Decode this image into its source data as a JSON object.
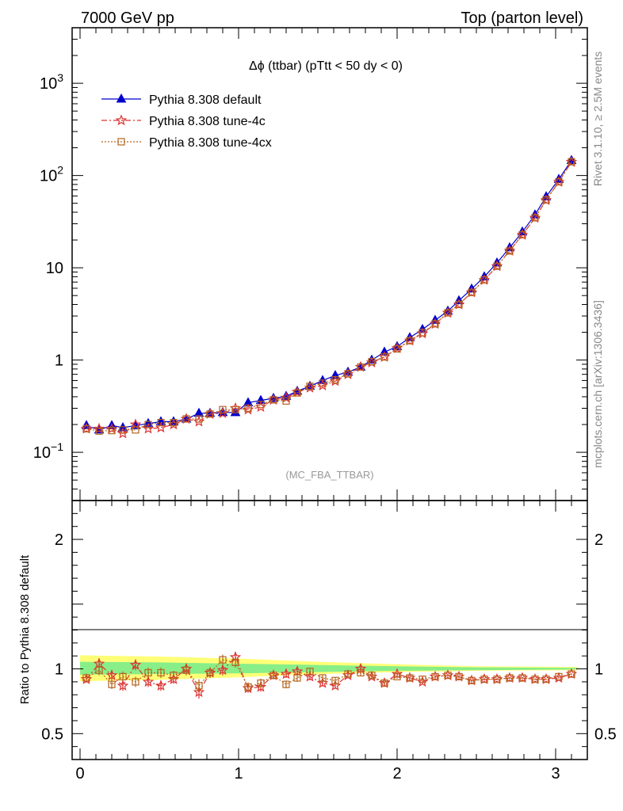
{
  "header": {
    "left": "7000 GeV pp",
    "right": "Top (parton level)"
  },
  "side_labels": {
    "rivet": "Rivet 3.1.10, ≥ 2.5M events",
    "mcplots": "mcplots.cern.ch [arXiv:1306.3436]"
  },
  "chart_data": [
    {
      "type": "line",
      "title": "Δϕ (ttbar) (pTtt < 50 dy < 0)",
      "annotation": "(MC_FBA_TTBAR)",
      "xlabel": "",
      "ylabel": "",
      "xlim": [
        -0.05,
        3.2
      ],
      "ylim": [
        0.03,
        4000
      ],
      "yscale": "log",
      "legend_position": "top-left",
      "y_ticks": [
        {
          "value": 0.1,
          "base": "10",
          "exp": "−1"
        },
        {
          "value": 1,
          "label": "1"
        },
        {
          "value": 10,
          "label": "10"
        },
        {
          "value": 100,
          "base": "10",
          "exp": "2"
        },
        {
          "value": 1000,
          "base": "10",
          "exp": "3"
        }
      ],
      "x": [
        0.04,
        0.12,
        0.2,
        0.27,
        0.35,
        0.43,
        0.51,
        0.59,
        0.67,
        0.75,
        0.82,
        0.9,
        0.98,
        1.06,
        1.14,
        1.22,
        1.3,
        1.37,
        1.45,
        1.53,
        1.61,
        1.69,
        1.77,
        1.84,
        1.92,
        2.0,
        2.08,
        2.16,
        2.24,
        2.32,
        2.39,
        2.47,
        2.55,
        2.63,
        2.71,
        2.79,
        2.87,
        2.94,
        3.02,
        3.1
      ],
      "series": [
        {
          "name": "Pythia 8.308 default",
          "color": "#0000cc",
          "marker": "triangle",
          "dash": "solid",
          "values": [
            0.195,
            0.175,
            0.195,
            0.185,
            0.195,
            0.205,
            0.215,
            0.215,
            0.23,
            0.265,
            0.265,
            0.27,
            0.27,
            0.345,
            0.365,
            0.385,
            0.405,
            0.46,
            0.52,
            0.6,
            0.68,
            0.74,
            0.84,
            1.0,
            1.22,
            1.4,
            1.75,
            2.15,
            2.7,
            3.4,
            4.4,
            5.9,
            8.0,
            11.3,
            16.5,
            24.5,
            37.5,
            59.0,
            91.0,
            146
          ]
        },
        {
          "name": "Pythia 8.308 tune-4c",
          "color": "#dd3333",
          "marker": "star",
          "dash": "dashdot",
          "values": [
            0.18,
            0.18,
            0.18,
            0.16,
            0.2,
            0.18,
            0.185,
            0.2,
            0.23,
            0.215,
            0.26,
            0.265,
            0.3,
            0.29,
            0.31,
            0.37,
            0.39,
            0.45,
            0.5,
            0.53,
            0.59,
            0.7,
            0.84,
            0.94,
            1.08,
            1.34,
            1.62,
            1.94,
            2.46,
            3.24,
            4.0,
            5.4,
            7.35,
            10.4,
            15.3,
            22.7,
            34.7,
            54.0,
            85.0,
            140
          ]
        },
        {
          "name": "Pythia 8.308 tune-4cx",
          "color": "#b5651d",
          "marker": "square",
          "dash": "dotted",
          "values": [
            0.18,
            0.17,
            0.172,
            0.175,
            0.175,
            0.2,
            0.21,
            0.21,
            0.23,
            0.23,
            0.26,
            0.29,
            0.29,
            0.3,
            0.33,
            0.37,
            0.36,
            0.44,
            0.52,
            0.56,
            0.61,
            0.71,
            0.84,
            0.96,
            1.08,
            1.32,
            1.62,
            1.98,
            2.47,
            3.25,
            4.0,
            5.4,
            7.4,
            10.4,
            15.2,
            22.8,
            34.9,
            54.5,
            85.5,
            141
          ]
        }
      ]
    },
    {
      "type": "line",
      "title": "",
      "xlabel": "",
      "ylabel": "Ratio to Pythia 8.308 default",
      "xlim": [
        -0.05,
        3.2
      ],
      "ylim": [
        0.3,
        2.3
      ],
      "yscale": "linear",
      "x_ticks": [
        {
          "value": 0,
          "label": "0"
        },
        {
          "value": 1,
          "label": "1"
        },
        {
          "value": 2,
          "label": "2"
        },
        {
          "value": 3,
          "label": "3"
        }
      ],
      "y_ticks": [
        {
          "value": 0.5,
          "label": "0.5"
        },
        {
          "value": 1,
          "label": "1"
        },
        {
          "value": 2,
          "label": "2"
        }
      ],
      "bands": {
        "yellow": {
          "color": "#ffff77",
          "x": [
            0.0,
            0.5,
            1.0,
            1.5,
            2.0,
            2.5,
            3.14
          ],
          "lo": [
            0.905,
            0.915,
            0.935,
            0.96,
            0.975,
            0.985,
            0.99
          ],
          "hi": [
            1.105,
            1.095,
            1.08,
            1.055,
            1.035,
            1.02,
            1.015
          ]
        },
        "green": {
          "color": "#88ee88",
          "x": [
            0.0,
            0.5,
            1.0,
            1.5,
            2.0,
            2.5,
            3.14
          ],
          "lo": [
            0.955,
            0.96,
            0.965,
            0.975,
            0.985,
            0.99,
            0.995
          ],
          "hi": [
            1.055,
            1.05,
            1.04,
            1.03,
            1.02,
            1.012,
            1.008
          ]
        }
      },
      "series": [
        {
          "name": "Pythia 8.308 tune-4c",
          "color": "#dd3333",
          "marker": "star",
          "dash": "dashdot",
          "values": [
            0.92,
            1.04,
            0.95,
            0.87,
            1.03,
            0.9,
            0.87,
            0.92,
            1.0,
            0.82,
            0.97,
            0.99,
            1.09,
            0.85,
            0.86,
            0.95,
            0.96,
            0.98,
            0.94,
            0.89,
            0.87,
            0.95,
            1.0,
            0.94,
            0.89,
            0.96,
            0.93,
            0.9,
            0.94,
            0.95,
            0.94,
            0.91,
            0.92,
            0.92,
            0.93,
            0.93,
            0.92,
            0.92,
            0.93,
            0.96
          ]
        },
        {
          "name": "Pythia 8.308 tune-4cx",
          "color": "#b5651d",
          "marker": "square",
          "dash": "dotted",
          "values": [
            0.93,
            0.99,
            0.88,
            0.94,
            0.9,
            0.97,
            0.97,
            0.95,
            0.99,
            0.87,
            0.97,
            1.07,
            1.05,
            0.86,
            0.89,
            0.95,
            0.88,
            0.93,
            0.98,
            0.93,
            0.91,
            0.96,
            0.97,
            0.95,
            0.89,
            0.94,
            0.93,
            0.92,
            0.94,
            0.95,
            0.94,
            0.91,
            0.92,
            0.92,
            0.93,
            0.93,
            0.92,
            0.92,
            0.94,
            0.96
          ]
        }
      ],
      "errors": [
        0.025,
        0.04,
        0.035,
        0.04,
        0.04,
        0.04,
        0.04,
        0.035,
        0.04,
        0.05,
        0.04,
        0.04,
        0.04,
        0.035,
        0.035,
        0.03,
        0.03,
        0.03,
        0.028,
        0.026,
        0.024,
        0.022,
        0.022,
        0.02,
        0.018,
        0.016,
        0.014,
        0.013,
        0.012,
        0.011,
        0.01,
        0.009,
        0.008,
        0.008,
        0.007,
        0.007,
        0.006,
        0.006,
        0.005,
        0.005
      ]
    }
  ]
}
